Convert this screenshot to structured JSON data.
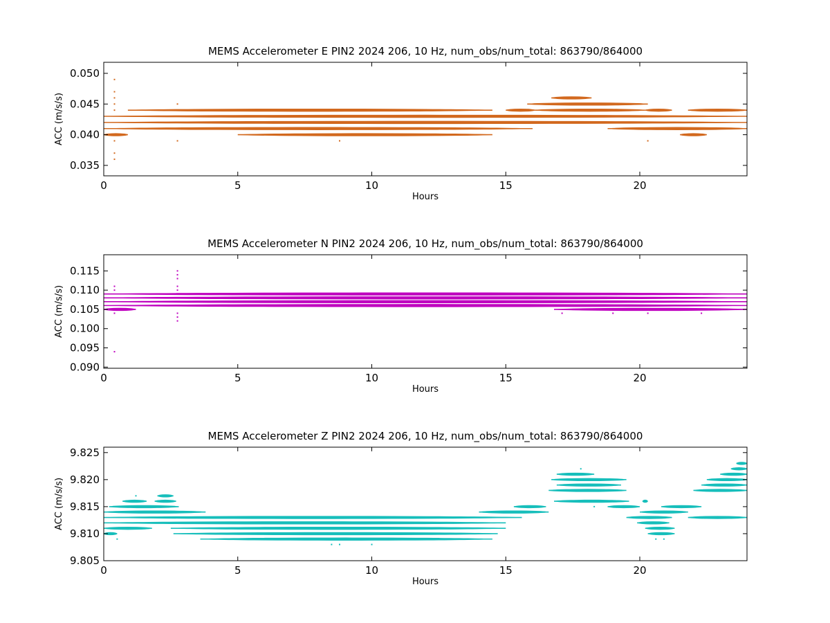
{
  "chart_data": [
    {
      "type": "scatter",
      "title": "MEMS Accelerometer E PIN2 2024 206, 10 Hz, num_obs/num_total: 863790/864000",
      "xlabel": "Hours",
      "ylabel": "ACC (m/s/s)",
      "xlim": [
        0,
        24
      ],
      "ylim": [
        0.0333,
        0.0518
      ],
      "xticks": [
        0,
        5,
        10,
        15,
        20
      ],
      "yticks": [
        0.035,
        0.04,
        0.045,
        0.05
      ],
      "ytick_labels": [
        "0.035",
        "0.040",
        "0.045",
        "0.050"
      ],
      "color": "#d2691e",
      "grid": false,
      "bands": [
        {
          "y": 0.044,
          "segments": [
            [
              0.9,
              14.5
            ],
            [
              15.0,
              16.1
            ],
            [
              16.1,
              20.2
            ],
            [
              20.2,
              21.2
            ],
            [
              21.8,
              24
            ]
          ]
        },
        {
          "y": 0.043,
          "segments": [
            [
              0,
              24
            ]
          ]
        },
        {
          "y": 0.042,
          "segments": [
            [
              0,
              24
            ]
          ]
        },
        {
          "y": 0.041,
          "segments": [
            [
              0,
              16.0
            ],
            [
              18.8,
              24
            ]
          ]
        },
        {
          "y": 0.04,
          "segments": [
            [
              0,
              0.9
            ],
            [
              5.0,
              14.5
            ],
            [
              21.5,
              22.5
            ]
          ]
        },
        {
          "y": 0.045,
          "segments": [
            [
              15.8,
              20.3
            ]
          ]
        },
        {
          "y": 0.046,
          "segments": [
            [
              16.7,
              18.2
            ]
          ]
        }
      ],
      "points": [
        [
          0.4,
          0.049
        ],
        [
          0.4,
          0.047
        ],
        [
          0.4,
          0.046
        ],
        [
          0.4,
          0.045
        ],
        [
          0.4,
          0.044
        ],
        [
          0.4,
          0.039
        ],
        [
          0.4,
          0.037
        ],
        [
          0.4,
          0.036
        ],
        [
          2.75,
          0.045
        ],
        [
          2.75,
          0.039
        ],
        [
          8.8,
          0.039
        ],
        [
          20.3,
          0.039
        ],
        [
          18.1,
          0.046
        ],
        [
          20.3,
          0.044
        ]
      ]
    },
    {
      "type": "scatter",
      "title": "MEMS Accelerometer N PIN2 2024 206, 10 Hz, num_obs/num_total: 863790/864000",
      "xlabel": "Hours",
      "ylabel": "ACC (m/s/s)",
      "xlim": [
        0,
        24
      ],
      "ylim": [
        0.0897,
        0.1192
      ],
      "xticks": [
        0,
        5,
        10,
        15,
        20
      ],
      "yticks": [
        0.09,
        0.095,
        0.1,
        0.105,
        0.11,
        0.115
      ],
      "ytick_labels": [
        "0.090",
        "0.095",
        "0.100",
        "0.105",
        "0.110",
        "0.115"
      ],
      "color": "#bf00bf",
      "grid": false,
      "bands": [
        {
          "y": 0.109,
          "segments": [
            [
              0,
              24
            ]
          ]
        },
        {
          "y": 0.108,
          "segments": [
            [
              0,
              24
            ]
          ]
        },
        {
          "y": 0.107,
          "segments": [
            [
              0,
              24
            ]
          ]
        },
        {
          "y": 0.106,
          "segments": [
            [
              0,
              24
            ]
          ]
        },
        {
          "y": 0.105,
          "segments": [
            [
              0,
              1.2
            ],
            [
              16.8,
              24
            ]
          ]
        }
      ],
      "points": [
        [
          0.4,
          0.111
        ],
        [
          0.4,
          0.11
        ],
        [
          0.4,
          0.104
        ],
        [
          0.4,
          0.094
        ],
        [
          2.75,
          0.115
        ],
        [
          2.75,
          0.114
        ],
        [
          2.75,
          0.113
        ],
        [
          2.75,
          0.111
        ],
        [
          2.75,
          0.11
        ],
        [
          2.75,
          0.104
        ],
        [
          2.75,
          0.103
        ],
        [
          2.75,
          0.102
        ],
        [
          17.1,
          0.104
        ],
        [
          19.0,
          0.104
        ],
        [
          20.3,
          0.104
        ],
        [
          22.3,
          0.104
        ]
      ]
    },
    {
      "type": "scatter",
      "title": "MEMS Accelerometer Z PIN2 2024 206, 10 Hz, num_obs/num_total: 863790/864000",
      "xlabel": "Hours",
      "ylabel": "ACC (m/s/s)",
      "xlim": [
        0,
        24
      ],
      "ylim": [
        9.805,
        9.826
      ],
      "xticks": [
        0,
        5,
        10,
        15,
        20
      ],
      "yticks": [
        9.805,
        9.81,
        9.815,
        9.82,
        9.825
      ],
      "ytick_labels": [
        "9.805",
        "9.810",
        "9.815",
        "9.820",
        "9.825"
      ],
      "color": "#17bebb",
      "grid": false,
      "bands": [
        {
          "y": 9.817,
          "segments": [
            [
              2.0,
              2.6
            ]
          ]
        },
        {
          "y": 9.816,
          "segments": [
            [
              0.7,
              1.6
            ],
            [
              1.9,
              2.7
            ],
            [
              16.8,
              19.6
            ],
            [
              20.1,
              20.3
            ]
          ]
        },
        {
          "y": 9.815,
          "segments": [
            [
              0.2,
              2.8
            ],
            [
              15.3,
              16.5
            ],
            [
              18.8,
              20.0
            ],
            [
              20.8,
              22.3
            ]
          ]
        },
        {
          "y": 9.814,
          "segments": [
            [
              0,
              3.8
            ],
            [
              14.0,
              16.6
            ],
            [
              20.0,
              21.8
            ]
          ]
        },
        {
          "y": 9.813,
          "segments": [
            [
              0,
              15.6
            ],
            [
              19.5,
              21.2
            ],
            [
              21.8,
              24
            ]
          ]
        },
        {
          "y": 9.812,
          "segments": [
            [
              0,
              15.0
            ],
            [
              19.9,
              21.1
            ]
          ]
        },
        {
          "y": 9.811,
          "segments": [
            [
              0,
              1.8
            ],
            [
              2.5,
              15.0
            ],
            [
              20.2,
              21.3
            ]
          ]
        },
        {
          "y": 9.81,
          "segments": [
            [
              0,
              0.5
            ],
            [
              2.6,
              14.7
            ],
            [
              20.3,
              21.3
            ]
          ]
        },
        {
          "y": 9.809,
          "segments": [
            [
              3.6,
              14.5
            ]
          ]
        },
        {
          "y": 9.818,
          "segments": [
            [
              16.6,
              19.5
            ],
            [
              22.0,
              24
            ]
          ]
        },
        {
          "y": 9.819,
          "segments": [
            [
              16.9,
              19.3
            ],
            [
              22.3,
              24
            ]
          ]
        },
        {
          "y": 9.82,
          "segments": [
            [
              16.7,
              19.5
            ],
            [
              22.5,
              24
            ]
          ]
        },
        {
          "y": 9.821,
          "segments": [
            [
              16.9,
              18.3
            ],
            [
              23.0,
              24
            ]
          ]
        },
        {
          "y": 9.822,
          "segments": [
            [
              23.4,
              24
            ]
          ]
        },
        {
          "y": 9.823,
          "segments": [
            [
              23.6,
              24
            ]
          ]
        }
      ],
      "points": [
        [
          0.5,
          9.809
        ],
        [
          1.2,
          9.817
        ],
        [
          8.5,
          9.808
        ],
        [
          8.8,
          9.808
        ],
        [
          10.0,
          9.808
        ],
        [
          17.8,
          9.822
        ],
        [
          18.3,
          9.815
        ],
        [
          20.6,
          9.809
        ],
        [
          20.9,
          9.809
        ]
      ]
    }
  ]
}
